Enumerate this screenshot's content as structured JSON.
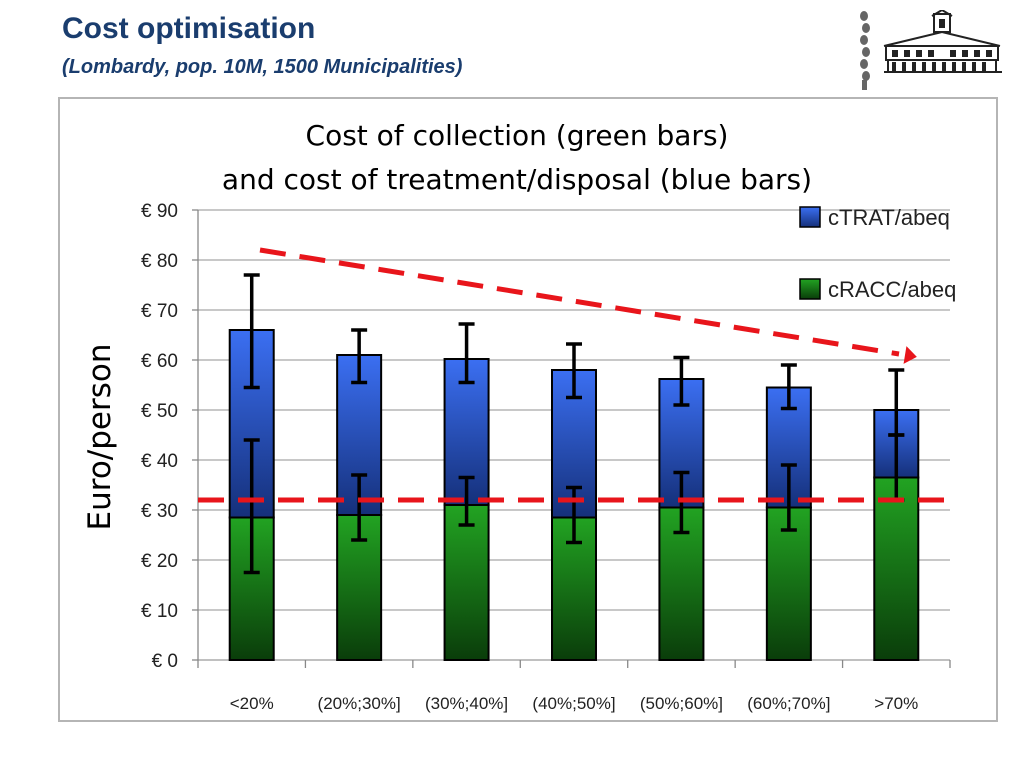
{
  "slide": {
    "title": "Cost optimisation",
    "subtitle": "(Lombardy, pop. 10M, 1500 Municipalities)"
  },
  "colors": {
    "title": "#1a3d6e",
    "treatment": "#2f63e0",
    "collection": "#1e8a1e",
    "trend": "#e8151b"
  },
  "chart_data": {
    "type": "bar",
    "stacked": true,
    "title_lines": [
      "Cost of collection (green bars)",
      "and cost of treatment/disposal (blue bars)"
    ],
    "ylabel": "Euro/person",
    "xlabel": "",
    "ylim": [
      0,
      90
    ],
    "yticks": [
      0,
      10,
      20,
      30,
      40,
      50,
      60,
      70,
      80,
      90
    ],
    "ytick_labels": [
      "€ 0",
      "€ 10",
      "€ 20",
      "€ 30",
      "€ 40",
      "€ 50",
      "€ 60",
      "€ 70",
      "€ 80",
      "€ 90"
    ],
    "grid": true,
    "legend_position": "top-right",
    "categories": [
      "<20%",
      "(20%;30%]",
      "(30%;40%]",
      "(40%;50%]",
      "(50%;60%]",
      "(60%;70%]",
      ">70%"
    ],
    "series": [
      {
        "name": "cRACC/abeq",
        "color": "#1e8a1e",
        "values": [
          28.5,
          29,
          31,
          28.5,
          30.5,
          30.5,
          36.5
        ],
        "error_low": [
          17.5,
          24,
          27,
          23.5,
          25.5,
          26,
          32
        ],
        "error_high": [
          44,
          37,
          36.5,
          34.5,
          37.5,
          39,
          45
        ]
      },
      {
        "name": "cTRAT/abeq",
        "color": "#2f63e0",
        "values": [
          37.5,
          32,
          29.2,
          29.5,
          25.7,
          24,
          13.5
        ],
        "error_low": [
          54.5,
          55.5,
          55.5,
          52.5,
          51,
          50.3,
          45
        ],
        "error_high": [
          77,
          66,
          67.2,
          63.2,
          60.5,
          59,
          58
        ]
      }
    ],
    "legend": [
      "cTRAT/abeq",
      "cRACC/abeq"
    ],
    "annotations": {
      "horizontal_reference_line": {
        "y": 32,
        "style": "dashed",
        "color": "#e8151b"
      },
      "trend_arrow": {
        "from_y": 82,
        "to_y": 61,
        "style": "dashed",
        "color": "#e8151b",
        "direction": "down-right"
      }
    }
  }
}
